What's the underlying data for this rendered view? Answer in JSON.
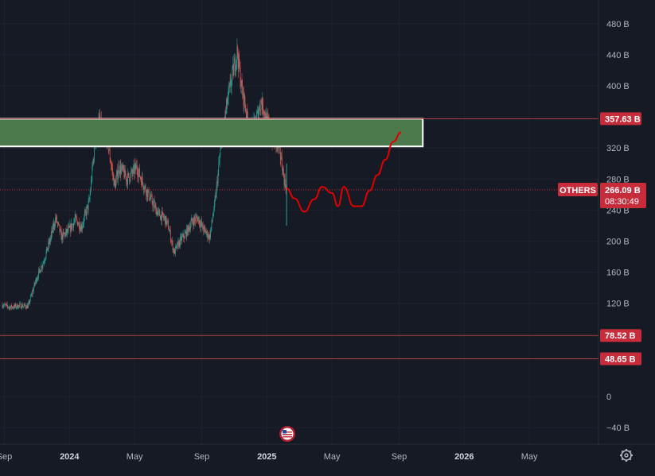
{
  "chart_data": {
    "type": "line",
    "symbol": "OTHERS",
    "y_unit": "B",
    "ylim": [
      -60,
      500
    ],
    "y_ticks": [
      {
        "value": 480,
        "label": "480 B"
      },
      {
        "value": 440,
        "label": "440 B"
      },
      {
        "value": 400,
        "label": "400 B"
      },
      {
        "value": 320,
        "label": "320 B"
      },
      {
        "value": 280,
        "label": "280 B"
      },
      {
        "value": 240,
        "label": "240 B"
      },
      {
        "value": 200,
        "label": "200 B"
      },
      {
        "value": 160,
        "label": "160 B"
      },
      {
        "value": 120,
        "label": "120 B"
      },
      {
        "value": 0,
        "label": "0"
      },
      {
        "value": -40,
        "label": "−40 B"
      }
    ],
    "x_ticks": [
      {
        "t": 2023.67,
        "label": "Sep"
      },
      {
        "t": 2024.0,
        "label": "2024"
      },
      {
        "t": 2024.33,
        "label": "May"
      },
      {
        "t": 2024.67,
        "label": "Sep"
      },
      {
        "t": 2025.0,
        "label": "2025"
      },
      {
        "t": 2025.33,
        "label": "May"
      },
      {
        "t": 2025.67,
        "label": "Sep"
      },
      {
        "t": 2026.0,
        "label": "2026"
      },
      {
        "t": 2026.33,
        "label": "May"
      }
    ],
    "xlim": [
      2023.66,
      2026.58
    ],
    "price_series": {
      "name": "OTHERS",
      "x": [
        2023.66,
        2023.7,
        2023.75,
        2023.79,
        2023.83,
        2023.87,
        2023.9,
        2023.93,
        2023.96,
        2024.0,
        2024.03,
        2024.06,
        2024.1,
        2024.13,
        2024.15,
        2024.17,
        2024.19,
        2024.21,
        2024.23,
        2024.25,
        2024.27,
        2024.29,
        2024.31,
        2024.34,
        2024.38,
        2024.42,
        2024.45,
        2024.48,
        2024.5,
        2024.53,
        2024.56,
        2024.59,
        2024.62,
        2024.65,
        2024.68,
        2024.71,
        2024.74,
        2024.77,
        2024.8,
        2024.83,
        2024.85,
        2024.87,
        2024.89,
        2024.91,
        2024.93,
        2024.95,
        2024.97,
        2024.99,
        2025.01,
        2025.03,
        2025.05,
        2025.07,
        2025.09,
        2025.1
      ],
      "values": [
        118,
        115,
        117,
        116,
        150,
        175,
        200,
        230,
        205,
        215,
        228,
        218,
        250,
        330,
        355,
        340,
        335,
        300,
        270,
        295,
        290,
        280,
        285,
        295,
        270,
        250,
        235,
        230,
        220,
        185,
        200,
        210,
        225,
        230,
        215,
        205,
        255,
        330,
        380,
        420,
        445,
        400,
        375,
        340,
        345,
        360,
        380,
        365,
        345,
        330,
        325,
        310,
        275,
        270
      ]
    },
    "projection": {
      "x": [
        2025.1,
        2025.14,
        2025.19,
        2025.24,
        2025.28,
        2025.33,
        2025.36,
        2025.39,
        2025.44,
        2025.48,
        2025.52,
        2025.56,
        2025.6,
        2025.64,
        2025.68
      ],
      "values": [
        268,
        255,
        238,
        254,
        270,
        262,
        245,
        270,
        245,
        245,
        265,
        285,
        305,
        328,
        340
      ]
    },
    "zone": {
      "low": 322,
      "high": 357.63,
      "x_start": 2023.66,
      "x_end": 2025.79
    },
    "levels": [
      357.63,
      78.52,
      48.65
    ],
    "level_labels": [
      "357.63 B",
      "78.52 B",
      "48.65 B"
    ],
    "current": {
      "value": 266.09,
      "symbol_label": "OTHERS",
      "value_label": "266.09 B",
      "countdown": "08:30:49"
    }
  },
  "colors": {
    "background": "#161a25",
    "grid": "#1e222d",
    "up": "#26a69a",
    "down": "#ef5350",
    "zone_fill": "#4c7a4c",
    "zone_border": "#ffffff",
    "projection": "#e00000",
    "level_line": "#b2444a",
    "tag_bg": "#c62c3a",
    "axis_text": "#b2b5be"
  },
  "icons": {
    "flag": "us-flag-icon",
    "settings": "gear-icon"
  }
}
